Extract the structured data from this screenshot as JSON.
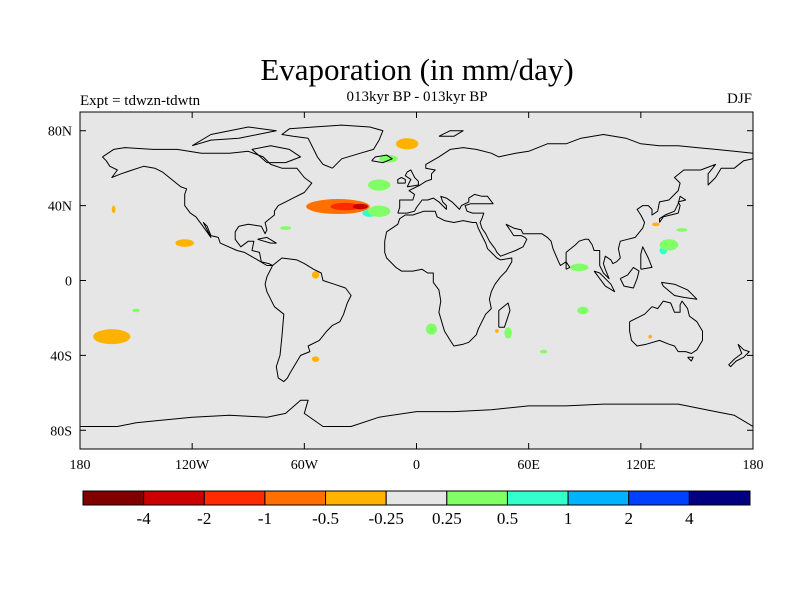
{
  "title": "Evaporation (in mm/day)",
  "subtitle": "013kyr BP - 013kyr BP",
  "experiment_label": "Expt = tdwzn-tdwtn",
  "season_label": "DJF",
  "map": {
    "lon_range": [
      -180,
      180
    ],
    "lat_range": [
      -90,
      90
    ],
    "background_color": "#e6e6e6",
    "lat_ticks": [
      {
        "value": 80,
        "label": "80N"
      },
      {
        "value": 40,
        "label": "40N"
      },
      {
        "value": 0,
        "label": "0"
      },
      {
        "value": -40,
        "label": "40S"
      },
      {
        "value": -80,
        "label": "80S"
      }
    ],
    "lon_ticks": [
      {
        "value": -180,
        "label": "180"
      },
      {
        "value": -120,
        "label": "120W"
      },
      {
        "value": -60,
        "label": "60W"
      },
      {
        "value": 0,
        "label": "0"
      },
      {
        "value": 60,
        "label": "60E"
      },
      {
        "value": 120,
        "label": "120E"
      },
      {
        "value": 180,
        "label": "180"
      }
    ]
  },
  "colorbar": {
    "colors": [
      "#800000",
      "#cc0000",
      "#ff2a00",
      "#ff7000",
      "#ffb300",
      "#e6e6e6",
      "#80ff66",
      "#33ffcc",
      "#00b3ff",
      "#0040ff",
      "#000080"
    ],
    "labels": [
      "-4",
      "-2",
      "-1",
      "-0.5",
      "-0.25",
      "0.25",
      "0.5",
      "1",
      "2",
      "4"
    ]
  },
  "anomalies": [
    {
      "level": "-0.5",
      "color": "#ff7000",
      "lon": -42,
      "lat": 39.5,
      "rlon": 17,
      "rlat": 4
    },
    {
      "level": "-1",
      "color": "#ff2a00",
      "lon": -38,
      "lat": 39.5,
      "rlon": 8,
      "rlat": 2
    },
    {
      "level": "-2",
      "color": "#cc0000",
      "lon": -30,
      "lat": 39.5,
      "rlon": 4,
      "rlat": 1.5
    },
    {
      "level": "1",
      "color": "#33ffcc",
      "lon": -25,
      "lat": 36,
      "rlon": 4,
      "rlat": 2
    },
    {
      "level": "0.5",
      "color": "#80ff66",
      "lon": -20,
      "lat": 37,
      "rlon": 6,
      "rlat": 3
    },
    {
      "level": "-0.25",
      "color": "#ffb300",
      "lon": -5,
      "lat": 73,
      "rlon": 6,
      "rlat": 3
    },
    {
      "level": "0.5",
      "color": "#80ff66",
      "lon": -15,
      "lat": 65,
      "rlon": 5,
      "rlat": 2
    },
    {
      "level": "0.5",
      "color": "#80ff66",
      "lon": -20,
      "lat": 51,
      "rlon": 6,
      "rlat": 3
    },
    {
      "level": "-0.25",
      "color": "#ffb300",
      "lon": -163,
      "lat": -30,
      "rlon": 10,
      "rlat": 4
    },
    {
      "level": "-0.25",
      "color": "#ffb300",
      "lon": -124,
      "lat": 20,
      "rlon": 5,
      "rlat": 2
    },
    {
      "level": "-0.25",
      "color": "#ffb300",
      "lon": -162,
      "lat": 38,
      "rlon": 1,
      "rlat": 2
    },
    {
      "level": "0.5",
      "color": "#80ff66",
      "lon": -150,
      "lat": -16,
      "rlon": 2,
      "rlat": 1
    },
    {
      "level": "-0.25",
      "color": "#ffb300",
      "lon": -54,
      "lat": 3,
      "rlon": 2,
      "rlat": 2
    },
    {
      "level": "-0.25",
      "color": "#ffb300",
      "lon": -54,
      "lat": -42,
      "rlon": 2,
      "rlat": 1.5
    },
    {
      "level": "0.5",
      "color": "#80ff66",
      "lon": -70,
      "lat": 28,
      "rlon": 3,
      "rlat": 1
    },
    {
      "level": "0.5",
      "color": "#80ff66",
      "lon": 8,
      "lat": -26,
      "rlon": 3,
      "rlat": 3
    },
    {
      "level": "0.5",
      "color": "#80ff66",
      "lon": 49,
      "lat": -28,
      "rlon": 2,
      "rlat": 3
    },
    {
      "level": "-0.25",
      "color": "#ffb300",
      "lon": 43,
      "lat": -27,
      "rlon": 1,
      "rlat": 1
    },
    {
      "level": "0.5",
      "color": "#80ff66",
      "lon": 68,
      "lat": -38,
      "rlon": 2,
      "rlat": 1
    },
    {
      "level": "0.5",
      "color": "#80ff66",
      "lon": 87,
      "lat": 7,
      "rlon": 5,
      "rlat": 2
    },
    {
      "level": "0.5",
      "color": "#80ff66",
      "lon": 89,
      "lat": -16,
      "rlon": 3,
      "rlat": 2
    },
    {
      "level": "1",
      "color": "#33ffcc",
      "lon": 132,
      "lat": 16,
      "rlon": 2,
      "rlat": 2
    },
    {
      "level": "0.5",
      "color": "#80ff66",
      "lon": 135,
      "lat": 19,
      "rlon": 5,
      "rlat": 3
    },
    {
      "level": "0.5",
      "color": "#80ff66",
      "lon": 142,
      "lat": 27,
      "rlon": 3,
      "rlat": 1
    },
    {
      "level": "-0.25",
      "color": "#ffb300",
      "lon": 128,
      "lat": 30,
      "rlon": 2,
      "rlat": 1
    },
    {
      "level": "-0.25",
      "color": "#ffb300",
      "lon": 125,
      "lat": -30,
      "rlon": 1,
      "rlat": 1
    }
  ]
}
